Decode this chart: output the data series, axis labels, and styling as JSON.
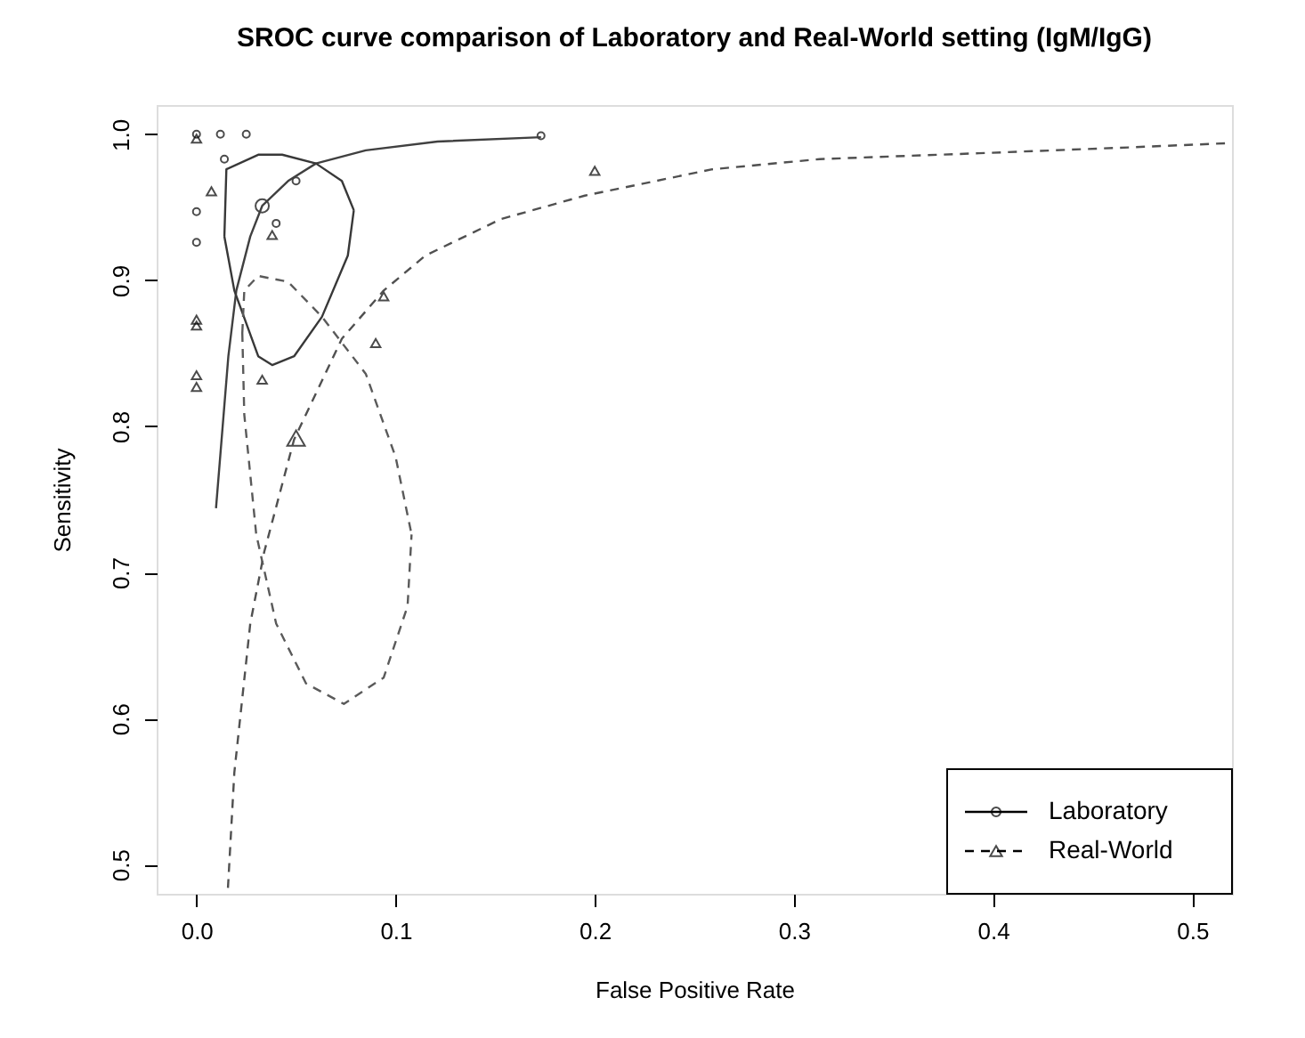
{
  "chart_data": {
    "type": "scatter",
    "title": "SROC curve comparison of Laboratory and Real-World setting (IgM/IgG)",
    "xlabel": "False Positive Rate",
    "ylabel": "Sensitivity",
    "xlim": [
      -0.02,
      0.52
    ],
    "ylim": [
      0.48,
      1.02
    ],
    "xticks": [
      {
        "value": 0,
        "label": "0.0"
      },
      {
        "value": 0.1,
        "label": "0.1"
      },
      {
        "value": 0.2,
        "label": "0.2"
      },
      {
        "value": 0.3,
        "label": "0.3"
      },
      {
        "value": 0.4,
        "label": "0.4"
      },
      {
        "value": 0.5,
        "label": "0.5"
      }
    ],
    "yticks": [
      {
        "value": 0.5,
        "label": "0.5"
      },
      {
        "value": 0.6,
        "label": "0.6"
      },
      {
        "value": 0.7,
        "label": "0.7"
      },
      {
        "value": 0.8,
        "label": "0.8"
      },
      {
        "value": 0.9,
        "label": "0.9"
      },
      {
        "value": 1,
        "label": "1.0"
      }
    ],
    "grid": false,
    "legend": "bottom right",
    "series": [
      {
        "name": "Laboratory",
        "marker": "circle",
        "line_style": "solid",
        "color": "#000000",
        "x": [
          0,
          0.012,
          0.025,
          0.173,
          0.014,
          0.05,
          0,
          0,
          0.04
        ],
        "values": [
          1.0,
          1.0,
          1.0,
          0.999,
          0.983,
          0.968,
          0.947,
          0.926,
          0.939
        ]
      },
      {
        "name": "Real-World",
        "marker": "triangle",
        "line_style": "dashed",
        "color": "#000000",
        "x": [
          0,
          0.0075,
          0.038,
          0,
          0,
          0.094,
          0.09,
          0,
          0,
          0.033,
          0.2
        ],
        "values": [
          0.997,
          0.961,
          0.931,
          0.873,
          0.869,
          0.889,
          0.857,
          0.835,
          0.827,
          0.832,
          0.975
        ]
      },
      {
        "marker": "circle",
        "color": "#000000",
        "x": [
          0.033
        ],
        "values": [
          0.951
        ]
      },
      {
        "marker": "triangle",
        "color": "#000000",
        "x": [
          0.05
        ],
        "values": [
          0.792
        ]
      },
      {
        "type": "line",
        "line_style": "solid",
        "color": "#404040",
        "x": [
          0.0098,
          0.016,
          0.02,
          0.027,
          0.033,
          0.046,
          0.06,
          0.085,
          0.121,
          0.173
        ],
        "values": [
          0.744,
          0.848,
          0.893,
          0.93,
          0.951,
          0.968,
          0.98,
          0.989,
          0.995,
          0.998
        ]
      },
      {
        "type": "line",
        "line_style": "solid",
        "color": "#383838",
        "x": [
          0.014,
          0.015,
          0.031,
          0.043,
          0.06,
          0.073,
          0.079,
          null,
          0.014,
          0.019,
          0.031,
          0.038,
          0.049,
          0.063,
          0.076,
          0.079
        ],
        "values": [
          0.93,
          0.976,
          0.986,
          0.986,
          0.98,
          0.968,
          0.948,
          null,
          0.93,
          0.893,
          0.848,
          0.842,
          0.848,
          0.875,
          0.917,
          0.948
        ]
      },
      {
        "type": "line",
        "line_style": "dashed",
        "color": "#505050",
        "x": [
          0.0158,
          0.019,
          0.027,
          0.034,
          0.049,
          0.073,
          0.094,
          0.115,
          0.153,
          0.195,
          0.259,
          0.313,
          0.393,
          0.468,
          0.52
        ],
        "values": [
          0.484,
          0.563,
          0.665,
          0.714,
          0.791,
          0.86,
          0.893,
          0.917,
          0.942,
          0.958,
          0.976,
          0.983,
          0.987,
          0.991,
          0.994
        ]
      },
      {
        "type": "line",
        "line_style": "dashed",
        "color": "#5a5a5a",
        "x": [
          0.023,
          0.024,
          0.031,
          0.046,
          0.063,
          0.085,
          0.1,
          0.108,
          null,
          0.023,
          0.024,
          0.03,
          0.04,
          0.055,
          0.074,
          0.094,
          0.106,
          0.108
        ],
        "values": [
          0.864,
          0.893,
          0.903,
          0.899,
          0.875,
          0.836,
          0.779,
          0.726,
          null,
          0.864,
          0.808,
          0.726,
          0.665,
          0.624,
          0.61,
          0.628,
          0.677,
          0.726
        ]
      }
    ]
  }
}
